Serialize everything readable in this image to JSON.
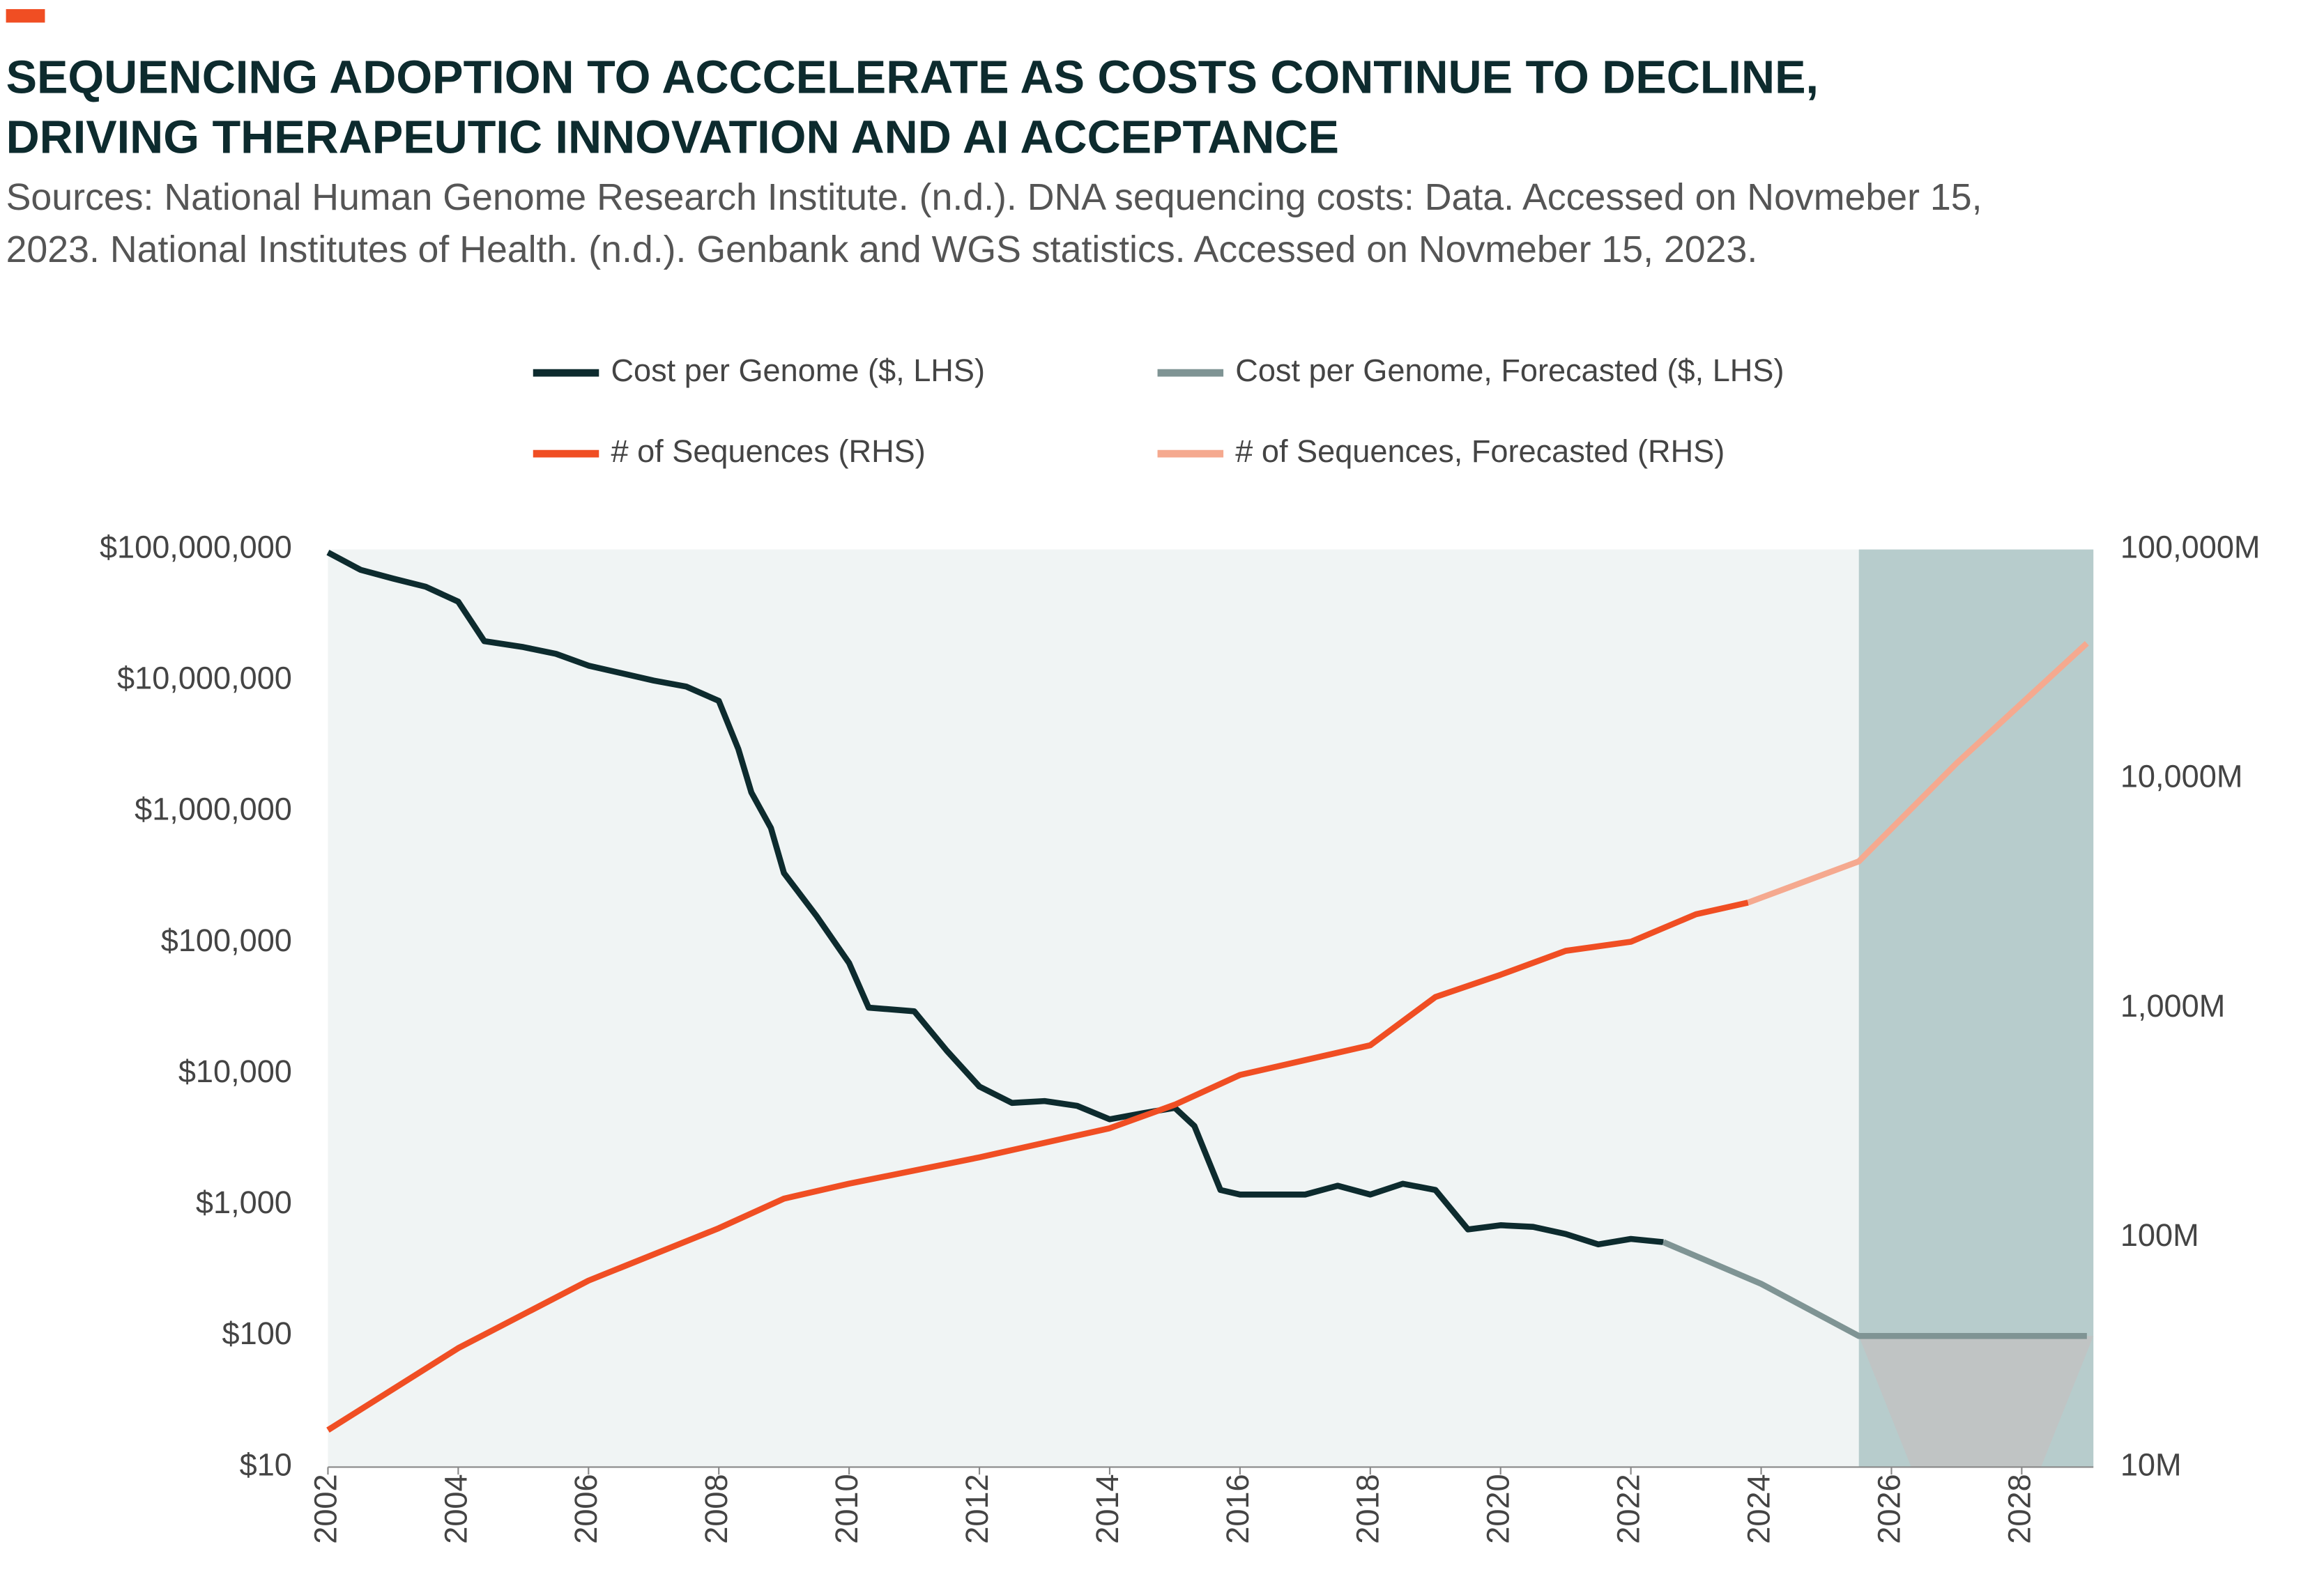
{
  "chart_data": {
    "type": "line",
    "title": [
      "SEQUENCING ADOPTION TO ACCCELERATE AS COSTS CONTINUE TO DECLINE,",
      "DRIVING THERAPEUTIC INNOVATION AND AI ACCEPTANCE"
    ],
    "source": [
      "Sources:  National Human Genome Research Institute. (n.d.). DNA sequencing costs: Data. Accessed on Novmeber 15,",
      "2023.  National Institutes of Health. (n.d.). Genbank and WGS statistics. Accessed on Novmeber 15, 2023."
    ],
    "xlim": [
      2002,
      2029.1
    ],
    "xticks": [
      2002,
      2004,
      2006,
      2008,
      2010,
      2012,
      2014,
      2016,
      2018,
      2020,
      2022,
      2024,
      2026,
      2028
    ],
    "ylim": [
      10,
      100000000
    ],
    "yticks": [
      {
        "value": 10,
        "label": "$10"
      },
      {
        "value": 100,
        "label": "$100"
      },
      {
        "value": 1000,
        "label": "$1,000"
      },
      {
        "value": 10000,
        "label": "$10,000"
      },
      {
        "value": 100000,
        "label": "$100,000"
      },
      {
        "value": 1000000,
        "label": "$1,000,000"
      },
      {
        "value": 10000000,
        "label": "$10,000,000"
      },
      {
        "value": 100000000,
        "label": "$100,000,000"
      }
    ],
    "y2lim": [
      10000000,
      100000000000
    ],
    "y2ticks": [
      {
        "value": 10000000,
        "label": "10M"
      },
      {
        "value": 100000000,
        "label": "100M"
      },
      {
        "value": 1000000000,
        "label": "1,000M"
      },
      {
        "value": 10000000000,
        "label": "10,000M"
      },
      {
        "value": 100000000000,
        "label": "100,000M"
      }
    ],
    "log_scale": true,
    "forecast_region": [
      2025.5,
      2029.1
    ],
    "series": [
      {
        "name": "Cost per Genome ($, LHS)",
        "color": "#0d2b2e",
        "x": [
          2002,
          2002.5,
          2003,
          2003.5,
          2004,
          2004.4,
          2005,
          2005.5,
          2006,
          2007,
          2007.5,
          2008,
          2008.3,
          2008.5,
          2008.8,
          2009,
          2009.5,
          2010,
          2010.3,
          2011,
          2011.5,
          2012,
          2012.5,
          2013,
          2013.5,
          2014,
          2014.5,
          2015,
          2015.3,
          2015.7,
          2016,
          2017,
          2017.5,
          2018,
          2018.5,
          2019,
          2019.5,
          2020,
          2020.5,
          2021,
          2021.5,
          2022,
          2022.5
        ],
        "values": [
          95000000,
          70000000,
          60000000,
          52000000,
          40000000,
          20000000,
          18000000,
          16000000,
          13000000,
          10000000,
          9000000,
          7000000,
          3000000,
          1400000,
          750000,
          340000,
          160000,
          70000,
          32000,
          30000,
          15000,
          8000,
          6000,
          6200,
          5700,
          4500,
          5000,
          5500,
          4000,
          1300,
          1200,
          1200,
          1400,
          1200,
          1450,
          1300,
          650,
          700,
          680,
          600,
          500,
          550,
          520
        ]
      },
      {
        "name": "Cost per Genome, Forecasted ($, LHS)",
        "color": "#7f9494",
        "x": [
          2022.5,
          2024,
          2025.5,
          2029
        ],
        "values": [
          520,
          250,
          100,
          100
        ]
      },
      {
        "name": "# of Sequences (RHS)",
        "color": "#f04e23",
        "axis": "y2",
        "x": [
          2002,
          2004,
          2006,
          2008,
          2009,
          2010,
          2012,
          2014,
          2015,
          2016,
          2018,
          2019,
          2020,
          2021,
          2022,
          2023,
          2023.8
        ],
        "values": [
          14500000,
          33000000,
          65000000,
          110000000,
          148000000,
          172000000,
          224000000,
          300000000,
          380000000,
          512000000,
          690000000,
          1120000000,
          1400000000,
          1780000000,
          1950000000,
          2570000000,
          2890000000
        ]
      },
      {
        "name": "# of Sequences, Forecasted (RHS)",
        "color": "#f5a98f",
        "axis": "y2",
        "x": [
          2023.8,
          2025.5,
          2027,
          2029
        ],
        "values": [
          2890000000,
          4370000000,
          11700000000,
          39000000000
        ]
      }
    ]
  }
}
